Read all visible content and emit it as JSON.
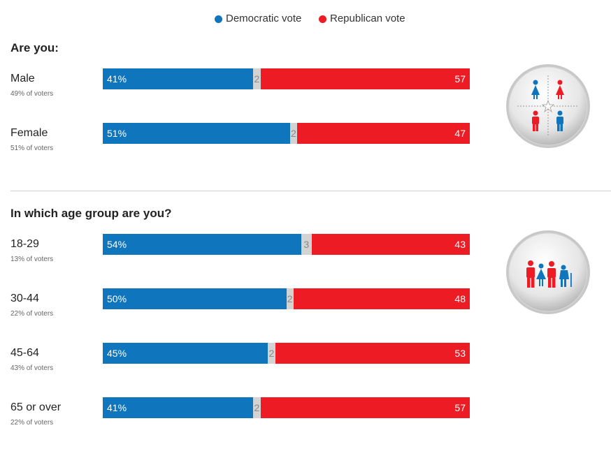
{
  "legend": {
    "dem": {
      "label": "Democratic vote",
      "color": "#0f75bc"
    },
    "rep": {
      "label": "Republican vote",
      "color": "#ed1c24"
    }
  },
  "colors": {
    "dem": "#0f75bc",
    "rep": "#ed1c24",
    "other": "#d3d3d3"
  },
  "icons": {
    "gender": "gender-badge-icon",
    "age": "age-group-badge-icon"
  },
  "chart_data": [
    {
      "type": "bar",
      "title": "Are you:",
      "stacked": true,
      "horizontal": true,
      "categories": [
        "Male",
        "Female"
      ],
      "subtitles": [
        "49% of voters",
        "51% of voters"
      ],
      "series": [
        {
          "name": "Democratic vote",
          "values": [
            41,
            51
          ],
          "labels": [
            "41%",
            "51%"
          ]
        },
        {
          "name": "",
          "values": [
            2,
            2
          ],
          "labels": [
            "2",
            "2"
          ]
        },
        {
          "name": "Republican vote",
          "values": [
            57,
            47
          ],
          "labels": [
            "57",
            "47"
          ]
        }
      ]
    },
    {
      "type": "bar",
      "title": "In which age group are you?",
      "stacked": true,
      "horizontal": true,
      "categories": [
        "18-29",
        "30-44",
        "45-64",
        "65 or over"
      ],
      "subtitles": [
        "13% of voters",
        "22% of voters",
        "43% of voters",
        "22% of voters"
      ],
      "series": [
        {
          "name": "Democratic vote",
          "values": [
            54,
            50,
            45,
            41
          ],
          "labels": [
            "54%",
            "50%",
            "45%",
            "41%"
          ]
        },
        {
          "name": "",
          "values": [
            3,
            2,
            2,
            2
          ],
          "labels": [
            "3",
            "2",
            "2",
            "2"
          ]
        },
        {
          "name": "Republican vote",
          "values": [
            43,
            48,
            53,
            57
          ],
          "labels": [
            "43",
            "48",
            "53",
            "57"
          ]
        }
      ]
    }
  ]
}
